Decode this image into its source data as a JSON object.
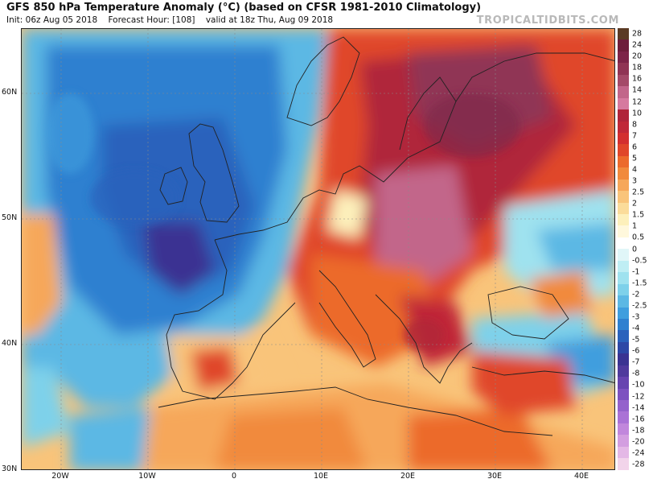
{
  "title": "GFS 850 hPa Temperature Anomaly (°C) (based on CFSR 1981-2010 Climatology)",
  "subtitle": {
    "init": "Init: 06z Aug 05 2018",
    "forecast_hour": "Forecast Hour: [108]",
    "valid": "valid at 18z Thu, Aug 09 2018"
  },
  "brand": "TROPICALTIDBITS.COM",
  "lat_labels": [
    "60N",
    "50N",
    "40N",
    "30N"
  ],
  "lon_labels": [
    "20W",
    "10W",
    "0",
    "10E",
    "20E",
    "30E",
    "40E"
  ],
  "colorbar": {
    "labels": [
      "28",
      "24",
      "20",
      "18",
      "16",
      "14",
      "12",
      "10",
      "8",
      "7",
      "6",
      "5",
      "4",
      "3",
      "2.5",
      "2",
      "1.5",
      "1",
      "0.5",
      "0",
      "-0.5",
      "-1",
      "-1.5",
      "-2",
      "-2.5",
      "-3",
      "-4",
      "-5",
      "-6",
      "-7",
      "-8",
      "-10",
      "-12",
      "-14",
      "-16",
      "-18",
      "-20",
      "-24",
      "-28"
    ],
    "colors": [
      "#5b3a24",
      "#6e1d3b",
      "#7d2448",
      "#903454",
      "#a44a68",
      "#c2668a",
      "#d67a9f",
      "#b0253a",
      "#c02838",
      "#d32f2f",
      "#e0462a",
      "#ec6a2c",
      "#f18a3c",
      "#f6a75a",
      "#f9c47a",
      "#fbdc9a",
      "#fdf0bb",
      "#fff8dc",
      "#ffffff",
      "#e0f6f8",
      "#bfeef4",
      "#9fe2ef",
      "#7ed1ea",
      "#5cb8e4",
      "#3f9ede",
      "#2f80d0",
      "#2a62bc",
      "#2d48a6",
      "#3a3392",
      "#4f3a9d",
      "#6744b0",
      "#7d52c0",
      "#9462cc",
      "#aa72d6",
      "#c187dc",
      "#d39ee0",
      "#e4b8e6",
      "#f2d4ea"
    ]
  }
}
